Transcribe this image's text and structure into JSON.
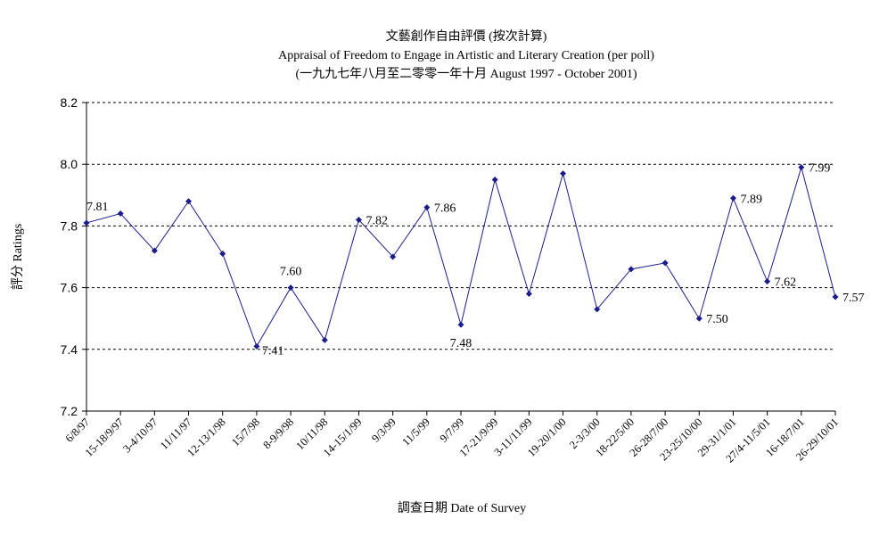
{
  "chart_data": {
    "type": "line",
    "title_zh": "文藝創作自由評價 (按次計算)",
    "title_en": "Appraisal of Freedom to Engage in Artistic and Literary Creation (per poll)",
    "subtitle": "(一九九七年八月至二零零一年十月 August 1997 - October 2001)",
    "xlabel": "調查日期 Date of Survey",
    "ylabel": "評分 Ratings",
    "ylim": [
      7.2,
      8.2
    ],
    "yticks": [
      "7.2",
      "7.4",
      "7.6",
      "7.8",
      "8.0",
      "8.2"
    ],
    "grid": "horizontal-dashed",
    "legend": "none",
    "color": "#1c1c8c",
    "categories": [
      "6/8/97",
      "15-18/9/97",
      "3-4/10/97",
      "11/11/97",
      "12-13/1/98",
      "15/7/98",
      "8-9/9/98",
      "10/11/98",
      "14-15/1/99",
      "9/3/99",
      "11/5/99",
      "9/7/99",
      "17-21/9/99",
      "3-11/11/99",
      "19-20/1/00",
      "2-3/3/00",
      "18-22/5/00",
      "26-28/7/00",
      "23-25/10/00",
      "29-31/1/01",
      "27/4-11/5/01",
      "16-18/7/01",
      "26-29/10/01"
    ],
    "values": [
      7.81,
      7.84,
      7.72,
      7.88,
      7.71,
      7.41,
      7.6,
      7.43,
      7.82,
      7.7,
      7.86,
      7.48,
      7.95,
      7.58,
      7.97,
      7.53,
      7.66,
      7.68,
      7.5,
      7.89,
      7.62,
      7.99,
      7.57
    ],
    "data_labels": [
      {
        "index": 0,
        "text": "7.81"
      },
      {
        "index": 5,
        "text": "7.41"
      },
      {
        "index": 6,
        "text": "7.60"
      },
      {
        "index": 8,
        "text": "7.82"
      },
      {
        "index": 10,
        "text": "7.86"
      },
      {
        "index": 11,
        "text": "7.48"
      },
      {
        "index": 18,
        "text": "7.50"
      },
      {
        "index": 19,
        "text": "7.89"
      },
      {
        "index": 20,
        "text": "7.62"
      },
      {
        "index": 21,
        "text": "7.99"
      },
      {
        "index": 22,
        "text": "7.57"
      }
    ]
  }
}
